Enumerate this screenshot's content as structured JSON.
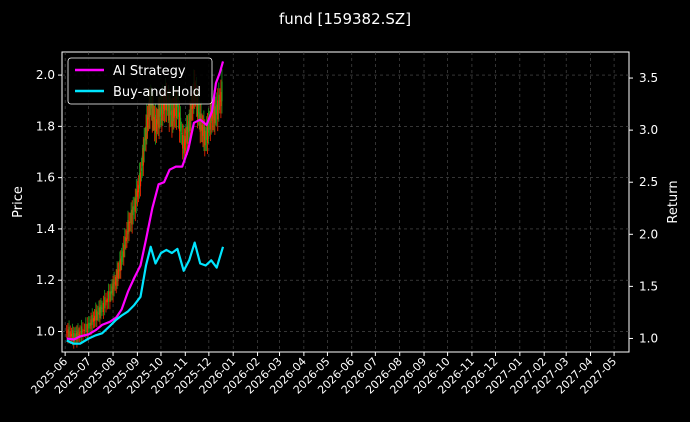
{
  "chart_data": {
    "type": "line",
    "title": "fund [159382.SZ]",
    "ylabel": "Price",
    "y2label": "Return",
    "ylim": [
      0.92,
      2.09
    ],
    "y2lim": [
      0.87,
      3.75
    ],
    "y_ticks": [
      "1.0",
      "1.2",
      "1.4",
      "1.6",
      "1.8",
      "2.0"
    ],
    "y2_ticks": [
      "1.0",
      "1.5",
      "2.0",
      "2.5",
      "3.0",
      "3.5"
    ],
    "x_ticks": [
      "2025-06",
      "2025-07",
      "2025-08",
      "2025-09",
      "2025-10",
      "2025-11",
      "2025-12",
      "2026-01",
      "2026-02",
      "2026-03",
      "2026-04",
      "2026-05",
      "2026-06",
      "2026-07",
      "2026-08",
      "2026-09",
      "2026-10",
      "2026-11",
      "2026-12",
      "2027-01",
      "2027-02",
      "2027-03",
      "2027-04",
      "2027-05"
    ],
    "xlim": [
      "2025-05-28",
      "2027-05-20"
    ],
    "grid": true,
    "legend_position": "top-left",
    "background": "#000000",
    "series": [
      {
        "name": "AI Strategy",
        "axis": "right",
        "color": "#ff00ff",
        "points": [
          [
            "2025-06-03",
            1.0
          ],
          [
            "2025-06-12",
            0.99
          ],
          [
            "2025-06-20",
            1.02
          ],
          [
            "2025-07-01",
            1.04
          ],
          [
            "2025-07-10",
            1.08
          ],
          [
            "2025-07-18",
            1.13
          ],
          [
            "2025-07-28",
            1.16
          ],
          [
            "2025-08-05",
            1.2
          ],
          [
            "2025-08-12",
            1.28
          ],
          [
            "2025-08-20",
            1.45
          ],
          [
            "2025-08-28",
            1.58
          ],
          [
            "2025-09-05",
            1.7
          ],
          [
            "2025-09-12",
            1.95
          ],
          [
            "2025-09-20",
            2.25
          ],
          [
            "2025-09-28",
            2.48
          ],
          [
            "2025-10-05",
            2.5
          ],
          [
            "2025-10-12",
            2.62
          ],
          [
            "2025-10-20",
            2.65
          ],
          [
            "2025-10-28",
            2.65
          ],
          [
            "2025-11-05",
            2.82
          ],
          [
            "2025-11-12",
            3.07
          ],
          [
            "2025-11-20",
            3.1
          ],
          [
            "2025-11-28",
            3.05
          ],
          [
            "2025-12-05",
            3.18
          ],
          [
            "2025-12-10",
            3.45
          ],
          [
            "2025-12-15",
            3.55
          ],
          [
            "2025-12-19",
            3.66
          ]
        ]
      },
      {
        "name": "Buy-and-Hold",
        "axis": "right",
        "color": "#00e5ff",
        "points": [
          [
            "2025-06-03",
            0.98
          ],
          [
            "2025-06-12",
            0.95
          ],
          [
            "2025-06-20",
            0.95
          ],
          [
            "2025-07-01",
            1.0
          ],
          [
            "2025-07-10",
            1.03
          ],
          [
            "2025-07-18",
            1.05
          ],
          [
            "2025-07-28",
            1.12
          ],
          [
            "2025-08-05",
            1.18
          ],
          [
            "2025-08-12",
            1.22
          ],
          [
            "2025-08-20",
            1.26
          ],
          [
            "2025-08-28",
            1.32
          ],
          [
            "2025-09-05",
            1.4
          ],
          [
            "2025-09-12",
            1.7
          ],
          [
            "2025-09-18",
            1.88
          ],
          [
            "2025-09-24",
            1.72
          ],
          [
            "2025-10-01",
            1.82
          ],
          [
            "2025-10-08",
            1.85
          ],
          [
            "2025-10-15",
            1.82
          ],
          [
            "2025-10-22",
            1.86
          ],
          [
            "2025-10-30",
            1.65
          ],
          [
            "2025-11-06",
            1.75
          ],
          [
            "2025-11-13",
            1.92
          ],
          [
            "2025-11-20",
            1.72
          ],
          [
            "2025-11-27",
            1.7
          ],
          [
            "2025-12-04",
            1.75
          ],
          [
            "2025-12-11",
            1.68
          ],
          [
            "2025-12-19",
            1.88
          ]
        ]
      },
      {
        "name": "price",
        "axis": "left",
        "style": "candlestick",
        "up_color": "#ff2a00",
        "down_color": "#1fa11f",
        "points": [
          [
            "2025-06-03",
            1.0
          ],
          [
            "2025-06-12",
            0.98
          ],
          [
            "2025-06-20",
            0.99
          ],
          [
            "2025-07-01",
            1.02
          ],
          [
            "2025-07-10",
            1.06
          ],
          [
            "2025-07-18",
            1.09
          ],
          [
            "2025-07-28",
            1.14
          ],
          [
            "2025-08-05",
            1.2
          ],
          [
            "2025-08-12",
            1.28
          ],
          [
            "2025-08-20",
            1.4
          ],
          [
            "2025-08-28",
            1.48
          ],
          [
            "2025-09-05",
            1.6
          ],
          [
            "2025-09-12",
            1.78
          ],
          [
            "2025-09-18",
            1.9
          ],
          [
            "2025-09-24",
            1.8
          ],
          [
            "2025-10-01",
            1.86
          ],
          [
            "2025-10-08",
            1.9
          ],
          [
            "2025-10-15",
            1.84
          ],
          [
            "2025-10-22",
            1.88
          ],
          [
            "2025-10-30",
            1.72
          ],
          [
            "2025-11-06",
            1.8
          ],
          [
            "2025-11-13",
            1.95
          ],
          [
            "2025-11-20",
            1.82
          ],
          [
            "2025-11-27",
            1.75
          ],
          [
            "2025-12-04",
            1.84
          ],
          [
            "2025-12-11",
            1.86
          ],
          [
            "2025-12-19",
            1.94
          ]
        ]
      }
    ]
  }
}
